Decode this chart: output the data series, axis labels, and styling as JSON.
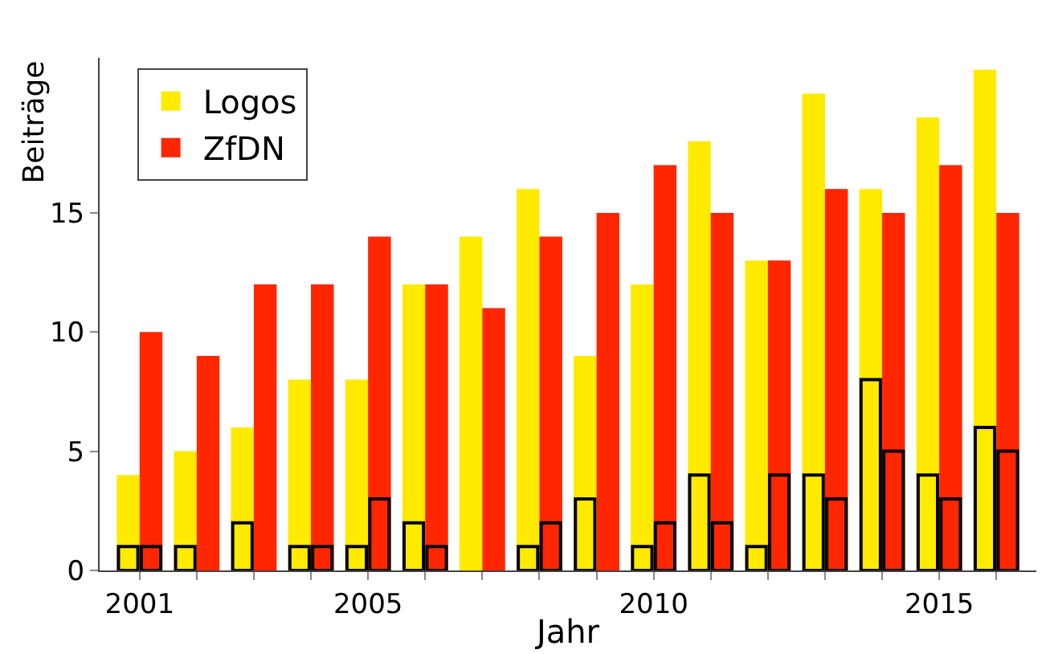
{
  "chart_data": {
    "type": "bar",
    "xlabel": "Jahr",
    "ylabel": "Beiträge",
    "x": [
      2001,
      2002,
      2003,
      2004,
      2005,
      2006,
      2007,
      2008,
      2009,
      2010,
      2011,
      2012,
      2013,
      2014,
      2015,
      2016
    ],
    "series": [
      {
        "name": "Logos",
        "color": "#ffea00",
        "values": [
          4,
          5,
          6,
          8,
          8,
          12,
          14,
          16,
          9,
          12,
          18,
          13,
          20,
          16,
          19,
          21
        ]
      },
      {
        "name": "ZfDN",
        "color": "#ff2600",
        "values": [
          10,
          9,
          12,
          12,
          14,
          12,
          11,
          14,
          15,
          17,
          15,
          13,
          16,
          15,
          17,
          15
        ]
      },
      {
        "color": "#000000",
        "values": [
          1,
          1,
          2,
          1,
          1,
          2,
          null,
          1,
          3,
          1,
          4,
          1,
          4,
          8,
          4,
          6
        ]
      },
      {
        "color": "#000000",
        "values": [
          1,
          null,
          null,
          1,
          3,
          1,
          null,
          2,
          null,
          2,
          2,
          4,
          3,
          5,
          3,
          5
        ]
      }
    ],
    "xlim": [
      2000.3,
      2016.7
    ],
    "xticks": [
      2001,
      {
        "value": 2002,
        "label": null
      },
      {
        "value": 2003,
        "label": null
      },
      {
        "value": 2004,
        "label": null
      },
      2005,
      {
        "value": 2006,
        "label": null
      },
      {
        "value": 2007,
        "label": null
      },
      {
        "value": 2008,
        "label": null
      },
      {
        "value": 2009,
        "label": null
      },
      2010,
      {
        "value": 2011,
        "label": null
      },
      {
        "value": 2012,
        "label": null
      },
      {
        "value": 2013,
        "label": null
      },
      {
        "value": 2014,
        "label": null
      },
      2015,
      {
        "value": 2016,
        "label": null
      }
    ],
    "ylim": [
      0,
      21.5
    ],
    "yticks": [
      0,
      5,
      10,
      15
    ],
    "legend": "top left"
  }
}
